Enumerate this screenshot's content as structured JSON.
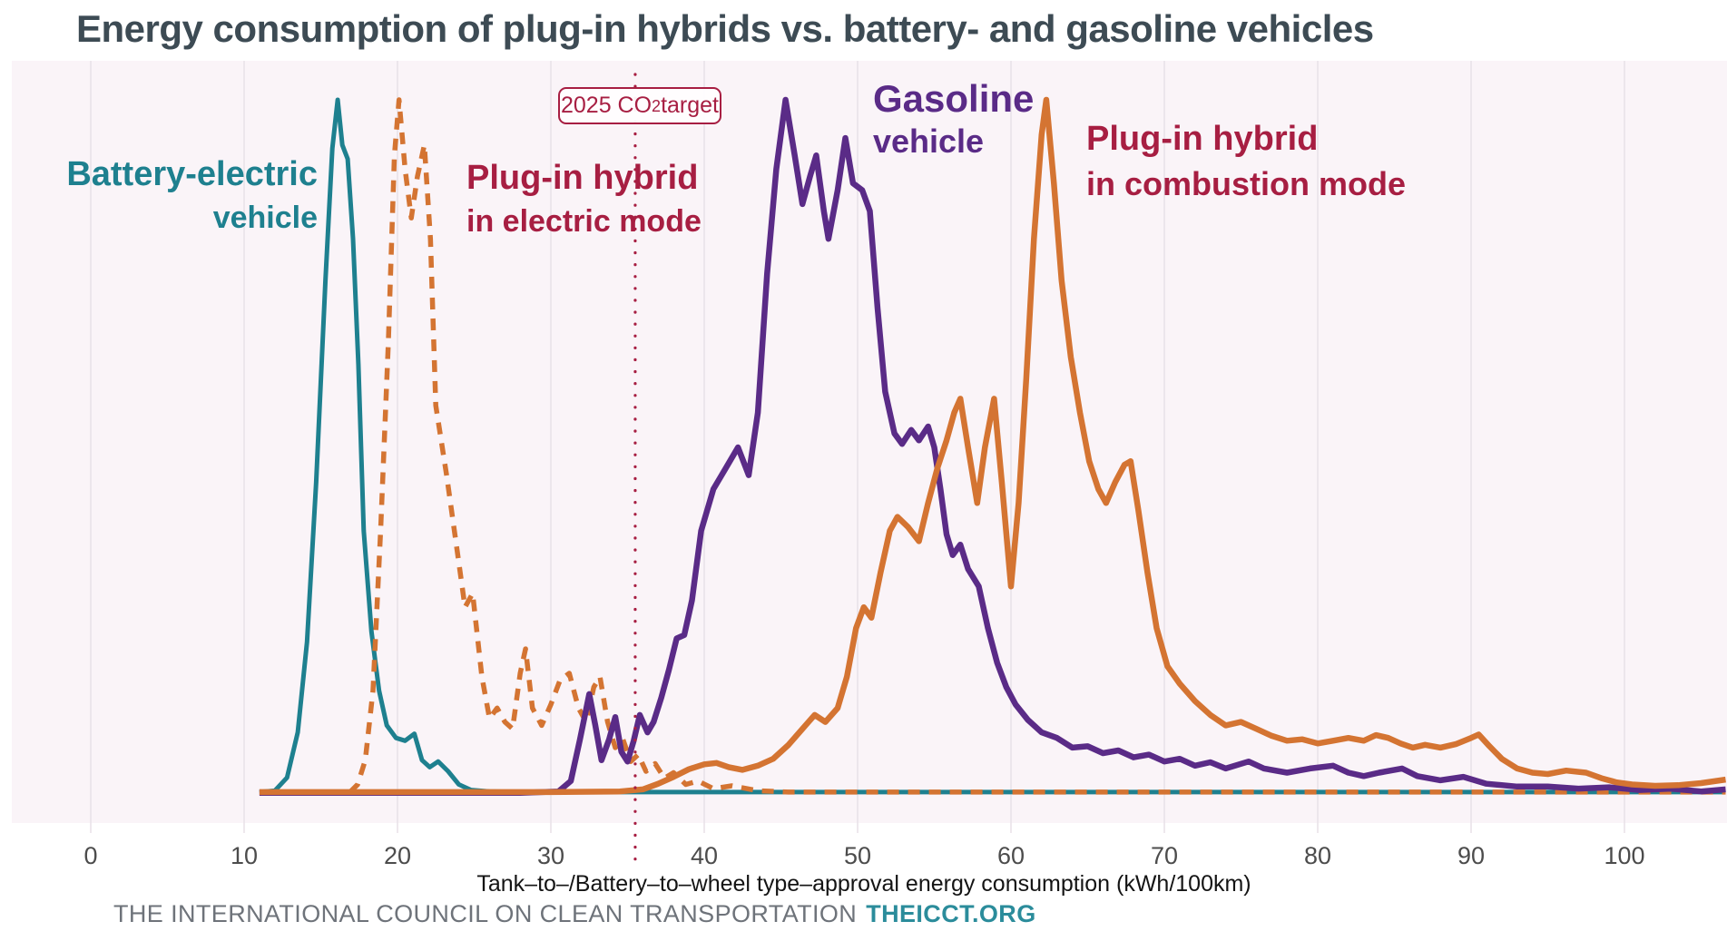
{
  "title": "Energy consumption of plug-in hybrids vs. battery- and gasoline vehicles",
  "target_box": {
    "prefix": "2025 CO",
    "sub": "2",
    "suffix": " target"
  },
  "legend": {
    "bev": {
      "line1": "Battery-electric",
      "line2": "vehicle",
      "color": "#1e808f"
    },
    "phev_electric": {
      "line1": "Plug-in hybrid",
      "line2": "in electric mode",
      "color": "#a71e42"
    },
    "gasoline": {
      "line1": "Gasoline",
      "line2": "vehicle",
      "color": "#5a2b87"
    },
    "phev_combustion": {
      "line1": "Plug-in hybrid",
      "line2": "in combustion mode",
      "color": "#a71e42"
    }
  },
  "footer": {
    "text": "THE INTERNATIONAL COUNCIL ON CLEAN TRANSPORTATION",
    "link": "THEICCT.ORG"
  },
  "colors": {
    "title": "#3d4b54",
    "panel_background": "#faf4f8",
    "gridline": "#e8e1e7",
    "tick_label": "#4c4c4c",
    "axis_label": "#141414",
    "footer_text": "#6e737a",
    "footer_link": "#2b8c9b",
    "target": "#a71e42"
  },
  "chart_data": {
    "type": "line",
    "subtype": "density-distribution",
    "title": "Energy consumption of plug-in hybrids vs. battery- and gasoline vehicles",
    "xlabel": "Tank–to–/Battery–to–wheel type–approval energy consumption (kWh/100km)",
    "ylabel": "",
    "y_units": "relative frequency (no y-axis shown, peak normalized to 1.0)",
    "xlim": [
      -5.2,
      106.7
    ],
    "ylim": [
      0,
      1.08
    ],
    "xticks": [
      0,
      10,
      20,
      30,
      40,
      50,
      60,
      70,
      80,
      90,
      100
    ],
    "grid": "vertical gridlines at each x tick",
    "legend_position": "labels placed next to curves",
    "target_line": {
      "x": 35.5,
      "label": "2025 CO2 target",
      "style": "dotted",
      "color": "#a71e42"
    },
    "series": [
      {
        "id": "bev",
        "name": "Battery-electric vehicle",
        "color": "#1e808f",
        "dash": null,
        "width": 5,
        "points": [
          [
            11,
            0.004
          ],
          [
            12,
            0.006
          ],
          [
            12.8,
            0.025
          ],
          [
            13.5,
            0.09
          ],
          [
            14.1,
            0.22
          ],
          [
            14.7,
            0.45
          ],
          [
            15.3,
            0.74
          ],
          [
            15.75,
            0.93
          ],
          [
            16.1,
            1.0
          ],
          [
            16.4,
            0.935
          ],
          [
            16.75,
            0.915
          ],
          [
            17.1,
            0.8
          ],
          [
            17.45,
            0.62
          ],
          [
            17.8,
            0.38
          ],
          [
            18.3,
            0.235
          ],
          [
            18.8,
            0.15
          ],
          [
            19.3,
            0.1
          ],
          [
            19.9,
            0.082
          ],
          [
            20.5,
            0.078
          ],
          [
            21.1,
            0.088
          ],
          [
            21.6,
            0.05
          ],
          [
            22.1,
            0.04
          ],
          [
            22.65,
            0.048
          ],
          [
            23.3,
            0.034
          ],
          [
            24,
            0.015
          ],
          [
            24.8,
            0.007
          ],
          [
            26,
            0.005
          ],
          [
            28,
            0.004
          ],
          [
            35,
            0.004
          ],
          [
            45,
            0.004
          ],
          [
            55,
            0.004
          ],
          [
            65,
            0.004
          ],
          [
            75,
            0.004
          ],
          [
            85,
            0.004
          ],
          [
            95,
            0.004
          ],
          [
            106.6,
            0.004
          ]
        ]
      },
      {
        "id": "phev_electric",
        "name": "Plug-in hybrid in electric mode",
        "color": "#d47432",
        "dash": "13 10",
        "width": 5.5,
        "points": [
          [
            16.9,
            0.004
          ],
          [
            17.4,
            0.015
          ],
          [
            17.9,
            0.05
          ],
          [
            18.4,
            0.15
          ],
          [
            18.9,
            0.38
          ],
          [
            19.4,
            0.65
          ],
          [
            19.8,
            0.92
          ],
          [
            20.1,
            1.0
          ],
          [
            20.5,
            0.9
          ],
          [
            20.9,
            0.83
          ],
          [
            21.3,
            0.89
          ],
          [
            21.75,
            0.935
          ],
          [
            22.15,
            0.8
          ],
          [
            22.5,
            0.56
          ],
          [
            23.2,
            0.46
          ],
          [
            23.9,
            0.35
          ],
          [
            24.4,
            0.27
          ],
          [
            24.9,
            0.29
          ],
          [
            25.5,
            0.17
          ],
          [
            26,
            0.11
          ],
          [
            26.5,
            0.125
          ],
          [
            27,
            0.105
          ],
          [
            27.5,
            0.095
          ],
          [
            28,
            0.175
          ],
          [
            28.35,
            0.21
          ],
          [
            28.8,
            0.125
          ],
          [
            29.4,
            0.1
          ],
          [
            30,
            0.13
          ],
          [
            30.6,
            0.165
          ],
          [
            31.2,
            0.175
          ],
          [
            31.8,
            0.125
          ],
          [
            32.3,
            0.105
          ],
          [
            32.8,
            0.155
          ],
          [
            33.2,
            0.17
          ],
          [
            33.7,
            0.105
          ],
          [
            34.2,
            0.068
          ],
          [
            34.7,
            0.08
          ],
          [
            35.2,
            0.048
          ],
          [
            35.7,
            0.058
          ],
          [
            36.2,
            0.034
          ],
          [
            36.8,
            0.045
          ],
          [
            37.4,
            0.024
          ],
          [
            38,
            0.032
          ],
          [
            38.8,
            0.015
          ],
          [
            39.6,
            0.02
          ],
          [
            40.6,
            0.009
          ],
          [
            41.8,
            0.013
          ],
          [
            43.5,
            0.006
          ],
          [
            45.5,
            0.004
          ],
          [
            55,
            0.004
          ],
          [
            65,
            0.004
          ],
          [
            75,
            0.004
          ],
          [
            85,
            0.004
          ],
          [
            95,
            0.004
          ],
          [
            106.6,
            0.004
          ]
        ]
      },
      {
        "id": "gasoline",
        "name": "Gasoline vehicle",
        "color": "#5a2b87",
        "dash": null,
        "width": 6.5,
        "points": [
          [
            11,
            0.003
          ],
          [
            20,
            0.003
          ],
          [
            28,
            0.003
          ],
          [
            30.5,
            0.005
          ],
          [
            31.3,
            0.02
          ],
          [
            31.9,
            0.08
          ],
          [
            32.5,
            0.145
          ],
          [
            32.9,
            0.1
          ],
          [
            33.3,
            0.05
          ],
          [
            33.8,
            0.08
          ],
          [
            34.2,
            0.112
          ],
          [
            34.6,
            0.062
          ],
          [
            35,
            0.048
          ],
          [
            35.4,
            0.078
          ],
          [
            35.8,
            0.115
          ],
          [
            36.3,
            0.09
          ],
          [
            36.7,
            0.105
          ],
          [
            37.2,
            0.14
          ],
          [
            37.7,
            0.18
          ],
          [
            38.2,
            0.225
          ],
          [
            38.7,
            0.23
          ],
          [
            39.2,
            0.28
          ],
          [
            39.8,
            0.38
          ],
          [
            40.6,
            0.44
          ],
          [
            41.4,
            0.47
          ],
          [
            42.2,
            0.5
          ],
          [
            42.9,
            0.46
          ],
          [
            43.5,
            0.55
          ],
          [
            44.1,
            0.75
          ],
          [
            44.7,
            0.9
          ],
          [
            45.3,
            1.0
          ],
          [
            45.9,
            0.92
          ],
          [
            46.4,
            0.85
          ],
          [
            46.9,
            0.89
          ],
          [
            47.3,
            0.92
          ],
          [
            47.8,
            0.84
          ],
          [
            48.1,
            0.8
          ],
          [
            48.7,
            0.87
          ],
          [
            49.2,
            0.945
          ],
          [
            49.7,
            0.88
          ],
          [
            50.3,
            0.87
          ],
          [
            50.8,
            0.84
          ],
          [
            51.3,
            0.7
          ],
          [
            51.8,
            0.58
          ],
          [
            52.4,
            0.52
          ],
          [
            52.9,
            0.505
          ],
          [
            53.5,
            0.525
          ],
          [
            54,
            0.51
          ],
          [
            54.6,
            0.53
          ],
          [
            55,
            0.5
          ],
          [
            55.4,
            0.44
          ],
          [
            55.8,
            0.375
          ],
          [
            56.2,
            0.345
          ],
          [
            56.7,
            0.36
          ],
          [
            57.2,
            0.325
          ],
          [
            57.9,
            0.3
          ],
          [
            58.5,
            0.24
          ],
          [
            59.1,
            0.19
          ],
          [
            59.7,
            0.155
          ],
          [
            60.3,
            0.13
          ],
          [
            61.1,
            0.108
          ],
          [
            62,
            0.09
          ],
          [
            63,
            0.082
          ],
          [
            64,
            0.068
          ],
          [
            65,
            0.07
          ],
          [
            66,
            0.06
          ],
          [
            67,
            0.064
          ],
          [
            68,
            0.054
          ],
          [
            69,
            0.058
          ],
          [
            70,
            0.048
          ],
          [
            71,
            0.052
          ],
          [
            72,
            0.042
          ],
          [
            73,
            0.047
          ],
          [
            74,
            0.038
          ],
          [
            75.5,
            0.048
          ],
          [
            76.5,
            0.038
          ],
          [
            78,
            0.032
          ],
          [
            79.5,
            0.038
          ],
          [
            81,
            0.042
          ],
          [
            82,
            0.032
          ],
          [
            83,
            0.027
          ],
          [
            84,
            0.032
          ],
          [
            85.5,
            0.038
          ],
          [
            86.5,
            0.027
          ],
          [
            88,
            0.021
          ],
          [
            89.5,
            0.026
          ],
          [
            91,
            0.016
          ],
          [
            93,
            0.012
          ],
          [
            95,
            0.012
          ],
          [
            97,
            0.009
          ],
          [
            99,
            0.011
          ],
          [
            101,
            0.007
          ],
          [
            103,
            0.009
          ],
          [
            105,
            0.005
          ],
          [
            106.6,
            0.008
          ]
        ]
      },
      {
        "id": "phev_combustion",
        "name": "Plug-in hybrid in combustion mode",
        "color": "#d47432",
        "dash": null,
        "width": 6.5,
        "points": [
          [
            11,
            0.004
          ],
          [
            20,
            0.004
          ],
          [
            30,
            0.004
          ],
          [
            34.5,
            0.005
          ],
          [
            36,
            0.008
          ],
          [
            37,
            0.016
          ],
          [
            38,
            0.026
          ],
          [
            39,
            0.037
          ],
          [
            40,
            0.044
          ],
          [
            40.8,
            0.046
          ],
          [
            41.6,
            0.04
          ],
          [
            42.5,
            0.036
          ],
          [
            43.5,
            0.042
          ],
          [
            44.5,
            0.052
          ],
          [
            45.5,
            0.072
          ],
          [
            46.4,
            0.095
          ],
          [
            47.2,
            0.115
          ],
          [
            47.9,
            0.105
          ],
          [
            48.7,
            0.125
          ],
          [
            49.3,
            0.17
          ],
          [
            49.9,
            0.24
          ],
          [
            50.4,
            0.27
          ],
          [
            50.9,
            0.255
          ],
          [
            51.5,
            0.32
          ],
          [
            52.1,
            0.38
          ],
          [
            52.6,
            0.4
          ],
          [
            53.3,
            0.385
          ],
          [
            54,
            0.365
          ],
          [
            54.6,
            0.42
          ],
          [
            55.2,
            0.47
          ],
          [
            55.8,
            0.51
          ],
          [
            56.3,
            0.55
          ],
          [
            56.7,
            0.57
          ],
          [
            57.2,
            0.5
          ],
          [
            57.8,
            0.42
          ],
          [
            58.3,
            0.5
          ],
          [
            58.9,
            0.57
          ],
          [
            59.4,
            0.45
          ],
          [
            60,
            0.3
          ],
          [
            60.5,
            0.42
          ],
          [
            61,
            0.6
          ],
          [
            61.5,
            0.8
          ],
          [
            62,
            0.95
          ],
          [
            62.3,
            1.0
          ],
          [
            62.8,
            0.88
          ],
          [
            63.3,
            0.74
          ],
          [
            63.9,
            0.63
          ],
          [
            64.5,
            0.55
          ],
          [
            65.1,
            0.48
          ],
          [
            65.7,
            0.44
          ],
          [
            66.2,
            0.42
          ],
          [
            66.8,
            0.45
          ],
          [
            67.4,
            0.475
          ],
          [
            67.8,
            0.48
          ],
          [
            68.3,
            0.41
          ],
          [
            68.9,
            0.32
          ],
          [
            69.5,
            0.24
          ],
          [
            70.2,
            0.185
          ],
          [
            71,
            0.16
          ],
          [
            72,
            0.135
          ],
          [
            73,
            0.115
          ],
          [
            74,
            0.1
          ],
          [
            75,
            0.105
          ],
          [
            76,
            0.095
          ],
          [
            77,
            0.085
          ],
          [
            78,
            0.078
          ],
          [
            79,
            0.08
          ],
          [
            80,
            0.074
          ],
          [
            81,
            0.078
          ],
          [
            82,
            0.082
          ],
          [
            83,
            0.078
          ],
          [
            83.8,
            0.086
          ],
          [
            84.6,
            0.082
          ],
          [
            85.4,
            0.074
          ],
          [
            86.2,
            0.068
          ],
          [
            87,
            0.072
          ],
          [
            88,
            0.068
          ],
          [
            89,
            0.073
          ],
          [
            90,
            0.082
          ],
          [
            90.5,
            0.087
          ],
          [
            91.2,
            0.07
          ],
          [
            92,
            0.052
          ],
          [
            93,
            0.038
          ],
          [
            94,
            0.032
          ],
          [
            95,
            0.03
          ],
          [
            96.2,
            0.035
          ],
          [
            97.5,
            0.032
          ],
          [
            98.5,
            0.024
          ],
          [
            99.5,
            0.018
          ],
          [
            100.5,
            0.015
          ],
          [
            102,
            0.013
          ],
          [
            103.5,
            0.014
          ],
          [
            105,
            0.017
          ],
          [
            106.6,
            0.022
          ]
        ]
      }
    ]
  }
}
